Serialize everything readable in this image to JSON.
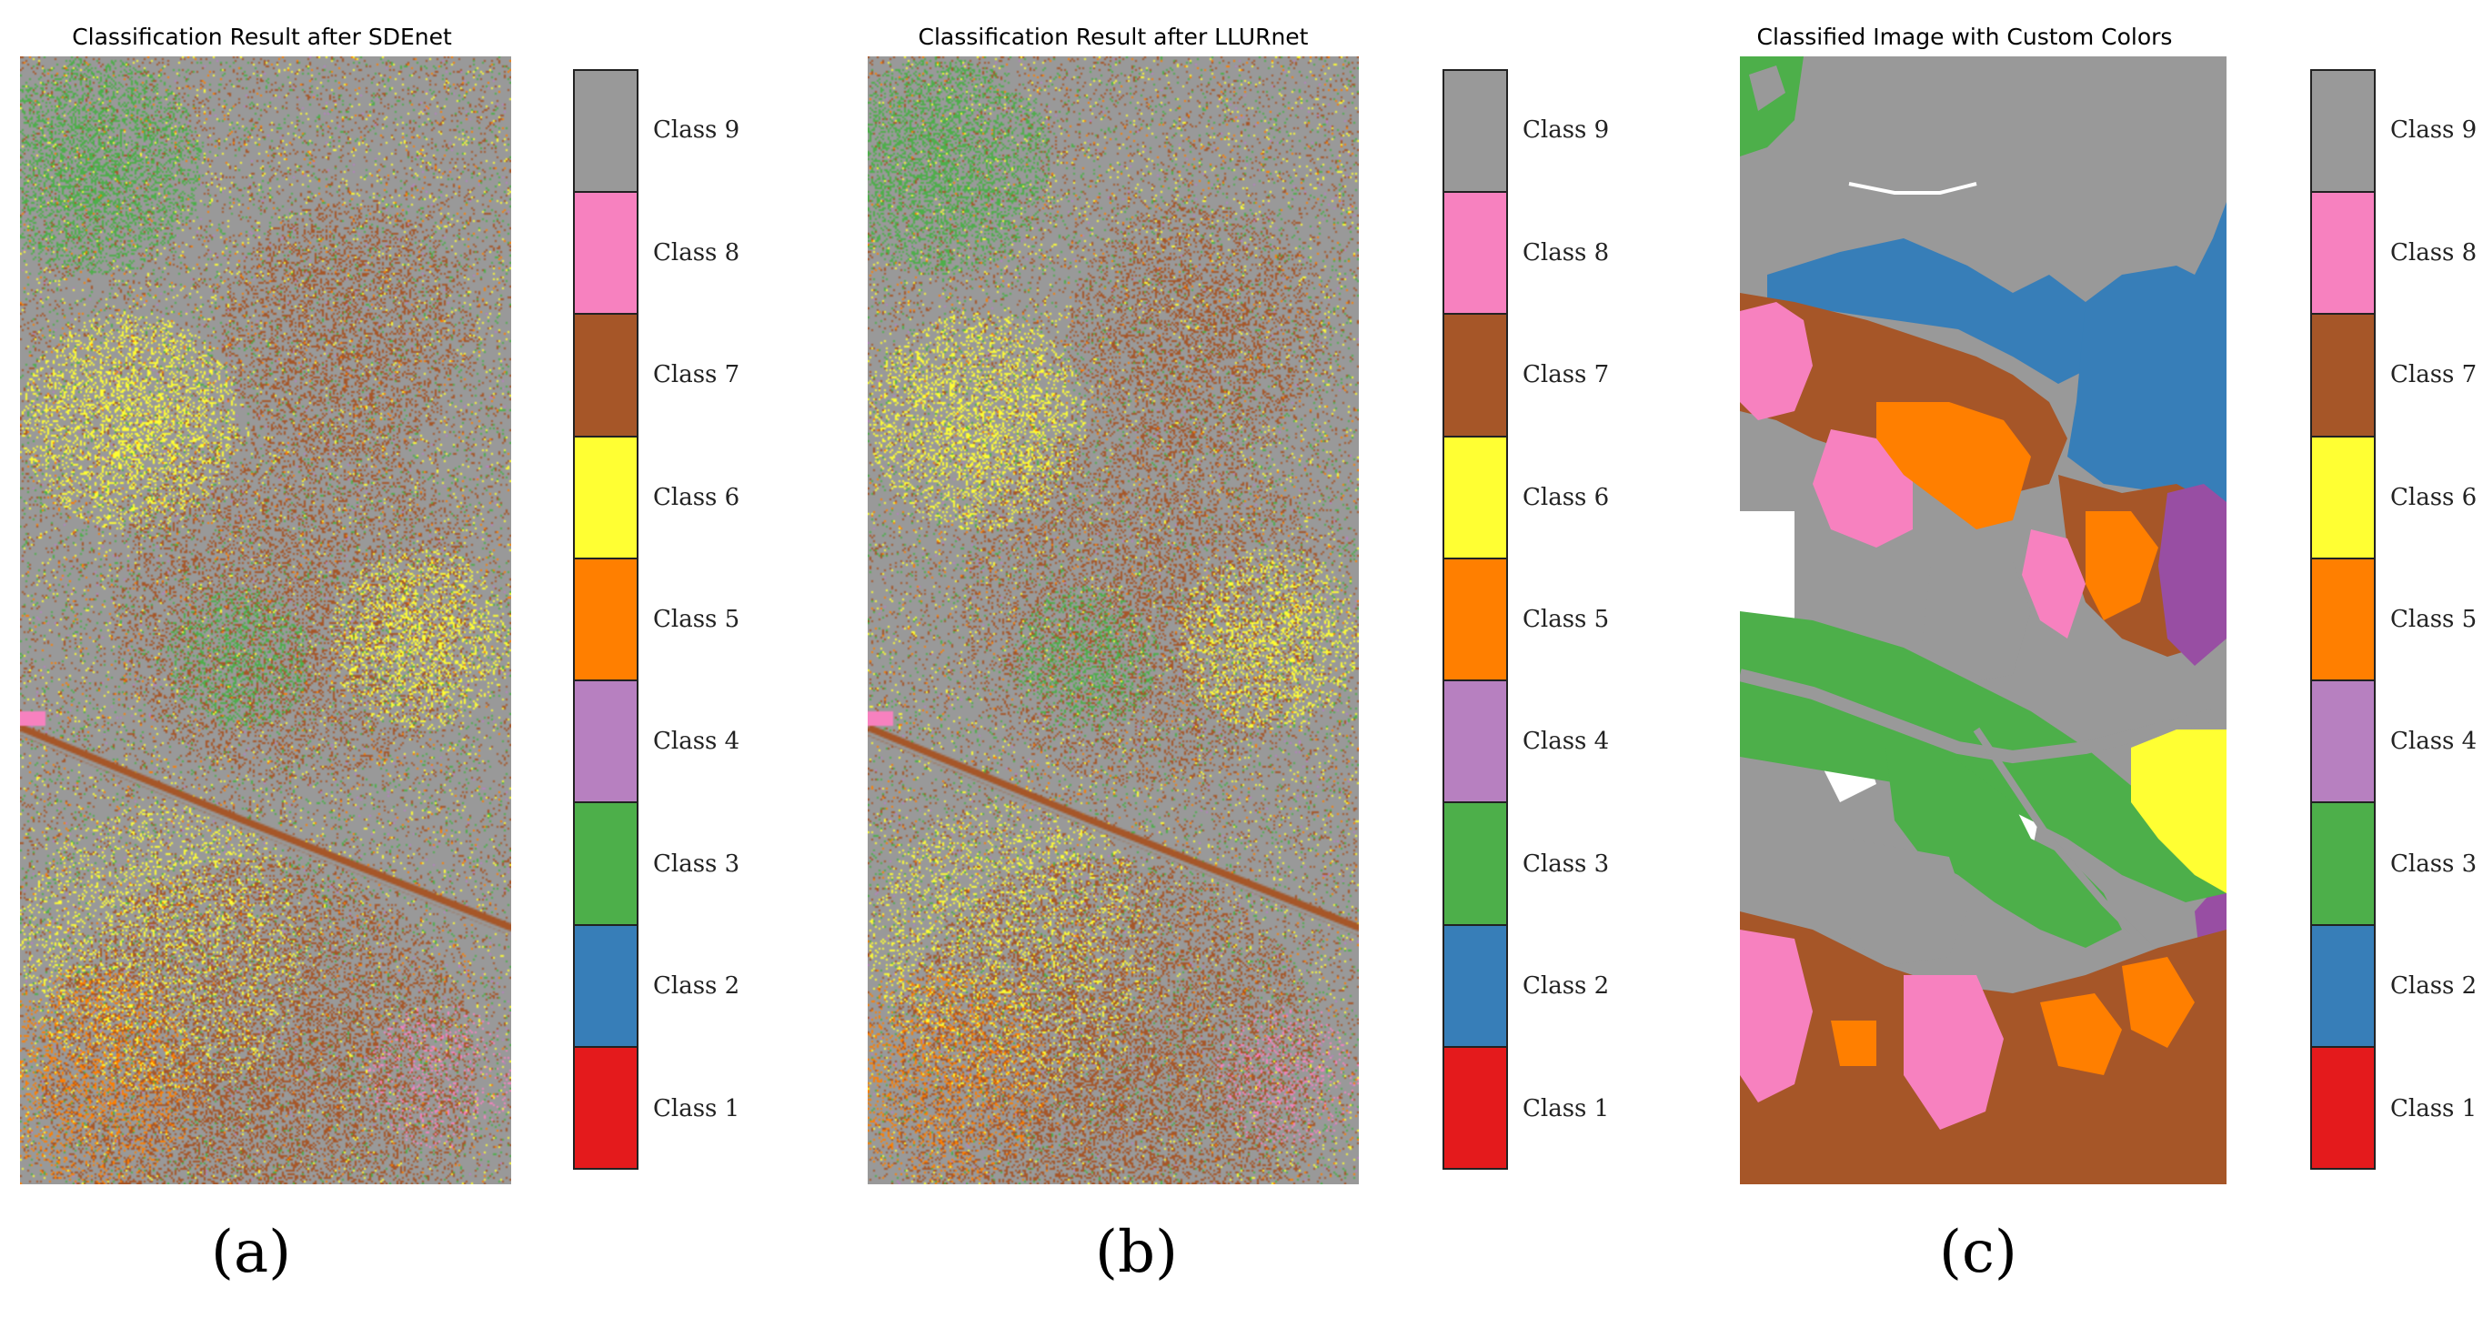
{
  "legend": {
    "classes": [
      {
        "label": "Class 9",
        "color": "#999999"
      },
      {
        "label": "Class 8",
        "color": "#f781bf"
      },
      {
        "label": "Class 7",
        "color": "#a65628"
      },
      {
        "label": "Class 6",
        "color": "#ffff33"
      },
      {
        "label": "Class 5",
        "color": "#ff7f00"
      },
      {
        "label": "Class 4",
        "color": "#b780c0"
      },
      {
        "label": "Class 3",
        "color": "#4daf4a"
      },
      {
        "label": "Class 2",
        "color": "#377eb8"
      },
      {
        "label": "Class 1",
        "color": "#e41a1c"
      }
    ]
  },
  "panels": [
    {
      "title": "Classification Result after SDEnet",
      "letter": "(a)"
    },
    {
      "title": "Classification Result after LLURnet",
      "letter": "(b)"
    },
    {
      "title": "Classified Image with Custom Colors",
      "letter": "(c)"
    }
  ]
}
